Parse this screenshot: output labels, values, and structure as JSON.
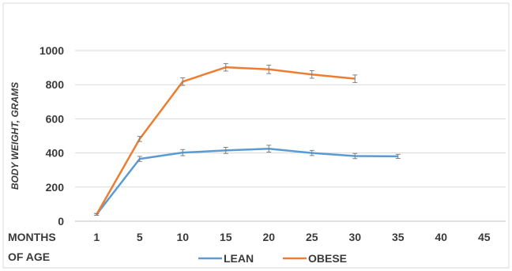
{
  "chart_data": {
    "type": "line",
    "title": "",
    "ylabel": "BODY WEIGHT, GRAMS",
    "xlabel_line1": "MONTHS",
    "xlabel_line2": "OF AGE",
    "ylim": [
      0,
      1000
    ],
    "yticks": [
      0,
      200,
      400,
      600,
      800,
      1000
    ],
    "categories": [
      "1",
      "5",
      "10",
      "15",
      "20",
      "25",
      "30",
      "35",
      "40",
      "45"
    ],
    "grid": true,
    "legend_position": "bottom",
    "series": [
      {
        "name": "LEAN",
        "color": "#5b9bd5",
        "values": [
          40,
          365,
          402,
          415,
          425,
          400,
          382,
          380,
          null,
          null
        ],
        "errors": [
          5,
          15,
          18,
          18,
          20,
          15,
          15,
          12,
          null,
          null
        ]
      },
      {
        "name": "OBESE",
        "color": "#ed7d31",
        "values": [
          40,
          482,
          818,
          902,
          890,
          860,
          835,
          null,
          null,
          null
        ],
        "errors": [
          5,
          15,
          22,
          22,
          25,
          22,
          22,
          null,
          null,
          null
        ]
      }
    ]
  }
}
